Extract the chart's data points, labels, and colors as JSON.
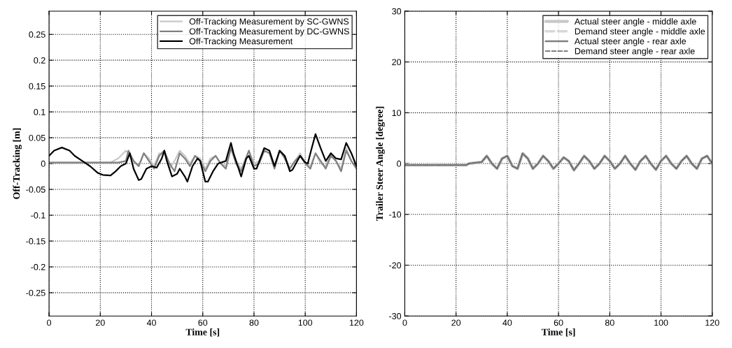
{
  "chart_data": [
    {
      "type": "line",
      "xlabel": "Time [s]",
      "ylabel": "Off-Tracking [m]",
      "xlim": [
        0,
        120
      ],
      "xticks": [
        0,
        20,
        40,
        60,
        80,
        100,
        120
      ],
      "ylim": [
        -0.295,
        0.295
      ],
      "yticks": [
        -0.25,
        -0.2,
        -0.15,
        -0.1,
        -0.05,
        0,
        0.05,
        0.1,
        0.15,
        0.2,
        0.25
      ],
      "grid": true,
      "legend": "top right",
      "line_style": "solid",
      "marker": "none",
      "series": [
        {
          "name": "Off-Tracking Measurement by SC-GWNS",
          "color": "#c8c8c8",
          "x": [
            0,
            24,
            27,
            30,
            31,
            33,
            35,
            37,
            39,
            41,
            43,
            45,
            47,
            49,
            51,
            53,
            55,
            57,
            59,
            61,
            63,
            65,
            67,
            69,
            71,
            73,
            75,
            78,
            80,
            82,
            84,
            86,
            88,
            90,
            92,
            94,
            96,
            98,
            100,
            102,
            104,
            106,
            108,
            110,
            112,
            114,
            116,
            118,
            120
          ],
          "values": [
            0.002,
            0.002,
            0.01,
            0.025,
            0.02,
            0.005,
            -0.005,
            0.02,
            0.01,
            -0.005,
            0.02,
            0.02,
            -0.01,
            0.005,
            0.025,
            0.015,
            0.0,
            0.015,
            0.01,
            -0.01,
            0.01,
            0.015,
            0.0,
            -0.005,
            0.03,
            0.005,
            -0.01,
            0.025,
            0.0,
            0.005,
            0.03,
            0.025,
            -0.005,
            0.025,
            0.015,
            -0.01,
            0.005,
            0.02,
            0.0,
            -0.005,
            0.02,
            0.0,
            -0.005,
            0.02,
            0.005,
            -0.01,
            0.03,
            0.005,
            -0.01
          ]
        },
        {
          "name": "Off-Tracking Measurement by DC-GWNS",
          "color": "#808080",
          "x": [
            0,
            27,
            30,
            31,
            33,
            35,
            37,
            39,
            41,
            43,
            45,
            47,
            49,
            51,
            53,
            55,
            57,
            59,
            61,
            63,
            65,
            67,
            69,
            71,
            73,
            75,
            78,
            80,
            82,
            84,
            86,
            88,
            90,
            92,
            94,
            96,
            98,
            100,
            102,
            104,
            106,
            108,
            110,
            112,
            114,
            116,
            118,
            120
          ],
          "values": [
            0.002,
            0.002,
            0.005,
            0.025,
            0.005,
            -0.005,
            0.02,
            0.005,
            -0.01,
            0.015,
            0.025,
            0.0,
            -0.015,
            0.02,
            0.01,
            -0.005,
            0.015,
            0.005,
            -0.015,
            0.005,
            0.015,
            0.0,
            -0.01,
            0.03,
            0.0,
            -0.015,
            0.025,
            -0.005,
            0.0,
            0.025,
            0.02,
            -0.01,
            0.025,
            0.01,
            -0.01,
            0.005,
            0.015,
            0.0,
            -0.01,
            0.02,
            0.005,
            -0.01,
            0.015,
            0.005,
            -0.015,
            0.025,
            0.005,
            -0.01
          ]
        },
        {
          "name": "Off-Tracking Measurement",
          "color": "#000000",
          "x": [
            0,
            2,
            5,
            8,
            10,
            13,
            16,
            19,
            21,
            24,
            26,
            28,
            30,
            31.5,
            33,
            35,
            36,
            38,
            40,
            42,
            44,
            45,
            46,
            48,
            50,
            51,
            53,
            54,
            55,
            56,
            58,
            59,
            61,
            62,
            64,
            66,
            69,
            71,
            72,
            75,
            77,
            78,
            80,
            81,
            84,
            86,
            88,
            90,
            92,
            94,
            95,
            98,
            100,
            101,
            102,
            104,
            106,
            108,
            110,
            112,
            114,
            116,
            118,
            120
          ],
          "values": [
            0.015,
            0.025,
            0.031,
            0.025,
            0.015,
            0.005,
            -0.005,
            -0.018,
            -0.022,
            -0.023,
            -0.015,
            -0.005,
            0.0,
            0.02,
            -0.01,
            -0.032,
            -0.03,
            -0.01,
            -0.005,
            -0.008,
            0.01,
            0.025,
            0.005,
            -0.025,
            -0.02,
            -0.01,
            -0.025,
            -0.035,
            -0.02,
            -0.005,
            0.01,
            0.005,
            -0.035,
            -0.035,
            -0.015,
            0.0,
            0.005,
            0.04,
            0.02,
            -0.025,
            0.01,
            0.015,
            -0.01,
            -0.01,
            0.03,
            0.025,
            -0.005,
            0.025,
            0.015,
            -0.015,
            -0.012,
            0.015,
            0.002,
            0.0,
            0.02,
            0.057,
            0.03,
            0.005,
            0.02,
            0.01,
            0.008,
            0.04,
            0.02,
            -0.005
          ]
        }
      ]
    },
    {
      "type": "line",
      "xlabel": "Time [s]",
      "ylabel": "Trailer Steer Angle [degree]",
      "xlim": [
        0,
        120
      ],
      "xticks": [
        0,
        20,
        40,
        60,
        80,
        100,
        120
      ],
      "ylim": [
        -30,
        30
      ],
      "yticks": [
        -30,
        -20,
        -10,
        0,
        10,
        20,
        30
      ],
      "grid": true,
      "legend": "top right",
      "marker": "none",
      "x": [
        0,
        24,
        25,
        30,
        32,
        34,
        36,
        38,
        40,
        42,
        44,
        46,
        48,
        50,
        52,
        54,
        56,
        58,
        60,
        62,
        64,
        66,
        68,
        70,
        72,
        74,
        76,
        78,
        80,
        82,
        84,
        86,
        88,
        90,
        92,
        94,
        96,
        98,
        100,
        102,
        104,
        106,
        108,
        110,
        112,
        114,
        116,
        118,
        120
      ],
      "series": [
        {
          "name": "Actual steer angle - middle axle",
          "color": "#c8c8c8",
          "line_style": "solid",
          "values": [
            -0.3,
            -0.3,
            0,
            0.3,
            1.5,
            0,
            -1,
            1,
            1.5,
            -0.5,
            -1,
            2,
            1,
            -1,
            0,
            1.5,
            0.5,
            -1,
            0,
            1.2,
            0.5,
            -1.3,
            0,
            1.5,
            0.5,
            -1,
            0,
            1.5,
            0.5,
            -1,
            0,
            1.5,
            0,
            -1.2,
            0.5,
            1.5,
            0,
            -1.2,
            0.5,
            1.5,
            0,
            -1,
            0.5,
            1.5,
            0,
            -1,
            1,
            1.5,
            0
          ]
        },
        {
          "name": "Demand steer angle - middle axle",
          "color": "#d8d8d8",
          "line_style": "dashed",
          "values": [
            -0.3,
            -0.3,
            0,
            0.3,
            1.5,
            0,
            -1,
            1,
            1.5,
            -0.5,
            -1,
            2,
            1,
            -1,
            0,
            1.5,
            0.5,
            -1,
            0,
            1.2,
            0.5,
            -1.3,
            0,
            1.5,
            0.5,
            -1,
            0,
            1.5,
            0.5,
            -1,
            0,
            1.5,
            0,
            -1.2,
            0.5,
            1.5,
            0,
            -1.2,
            0.5,
            1.5,
            0,
            -1,
            0.5,
            1.5,
            0,
            -1,
            1,
            1.5,
            0
          ]
        },
        {
          "name": "Actual steer angle - rear axle",
          "color": "#808080",
          "line_style": "solid",
          "values": [
            -0.3,
            -0.3,
            0,
            0.3,
            1.5,
            0,
            -1,
            1,
            1.5,
            -0.5,
            -1,
            2,
            1,
            -1,
            0,
            1.5,
            0.5,
            -1,
            0,
            1.2,
            0.5,
            -1.3,
            0,
            1.5,
            0.5,
            -1,
            0,
            1.5,
            0.5,
            -1,
            0,
            1.5,
            0,
            -1.2,
            0.5,
            1.5,
            0,
            -1.2,
            0.5,
            1.5,
            0,
            -1,
            0.5,
            1.5,
            0,
            -1,
            1,
            1.5,
            0
          ]
        },
        {
          "name": "Demand steer angle - rear axle",
          "color": "#6e6e6e",
          "line_style": "dashed",
          "values": [
            -0.3,
            -0.3,
            0,
            0.3,
            1.5,
            0,
            -1,
            1,
            1.5,
            -0.5,
            -1,
            2,
            1,
            -1,
            0,
            1.5,
            0.5,
            -1,
            0,
            1.2,
            0.5,
            -1.3,
            0,
            1.5,
            0.5,
            -1,
            0,
            1.5,
            0.5,
            -1,
            0,
            1.5,
            0,
            -1.2,
            0.5,
            1.5,
            0,
            -1.2,
            0.5,
            1.5,
            0,
            -1,
            0.5,
            1.5,
            0,
            -1,
            1,
            1.5,
            0
          ]
        }
      ]
    }
  ]
}
